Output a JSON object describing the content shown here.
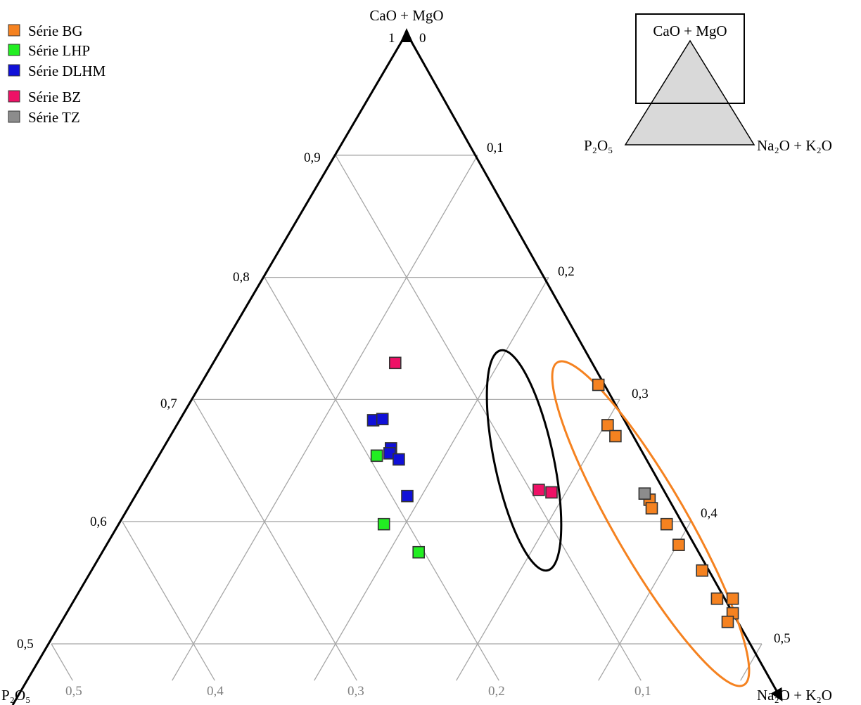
{
  "chart_data": {
    "type": "scatter",
    "subtype": "ternary",
    "vertices": {
      "top": "CaO + MgO",
      "left_html": "P₂O₅",
      "right_html": "Na₂O + K₂O"
    },
    "corner_ticks": {
      "top_a": "1",
      "top_b": "0"
    },
    "left_ticks": [
      "0,9",
      "0,8",
      "0,7",
      "0,6",
      "0,5"
    ],
    "right_ticks": [
      "0,1",
      "0,2",
      "0,3",
      "0,4",
      "0,5"
    ],
    "bottom_ticks": [
      "0,5",
      "0,4",
      "0,3",
      "0,2",
      "0,1"
    ],
    "grid": true,
    "legend_placement": "top-left",
    "series": [
      {
        "name": "Série BG",
        "color": "#f58220",
        "points": [
          {
            "camg": 0.712,
            "nak": 0.279
          },
          {
            "camg": 0.679,
            "nak": 0.302
          },
          {
            "camg": 0.67,
            "nak": 0.312
          },
          {
            "camg": 0.618,
            "nak": 0.362
          },
          {
            "camg": 0.611,
            "nak": 0.367
          },
          {
            "camg": 0.598,
            "nak": 0.384
          },
          {
            "camg": 0.581,
            "nak": 0.401
          },
          {
            "camg": 0.56,
            "nak": 0.428
          },
          {
            "camg": 0.537,
            "nak": 0.45
          },
          {
            "camg": 0.537,
            "nak": 0.461
          },
          {
            "camg": 0.525,
            "nak": 0.467
          },
          {
            "camg": 0.518,
            "nak": 0.467
          }
        ]
      },
      {
        "name": "Série LHP",
        "color": "#22ee22",
        "points": [
          {
            "camg": 0.654,
            "nak": 0.152
          },
          {
            "camg": 0.598,
            "nak": 0.185
          },
          {
            "camg": 0.575,
            "nak": 0.221
          }
        ]
      },
      {
        "name": "Série DLHM",
        "color": "#1010d8",
        "points": [
          {
            "camg": 0.683,
            "nak": 0.135
          },
          {
            "camg": 0.684,
            "nak": 0.141
          },
          {
            "camg": 0.66,
            "nak": 0.159
          },
          {
            "camg": 0.656,
            "nak": 0.16
          },
          {
            "camg": 0.651,
            "nak": 0.169
          },
          {
            "camg": 0.621,
            "nak": 0.19
          }
        ]
      },
      {
        "name": "Série BZ",
        "color": "#ee1166",
        "points": [
          {
            "camg": 0.73,
            "nak": 0.127
          },
          {
            "camg": 0.626,
            "nak": 0.28
          },
          {
            "camg": 0.624,
            "nak": 0.29
          }
        ]
      },
      {
        "name": "Série TZ",
        "color": "#8c8c8c",
        "points": [
          {
            "camg": 0.623,
            "nak": 0.356
          }
        ]
      }
    ]
  },
  "inset": {
    "top": "CaO + MgO",
    "left_html": "P₂O₅",
    "right_html": "Na₂O + K₂O"
  }
}
